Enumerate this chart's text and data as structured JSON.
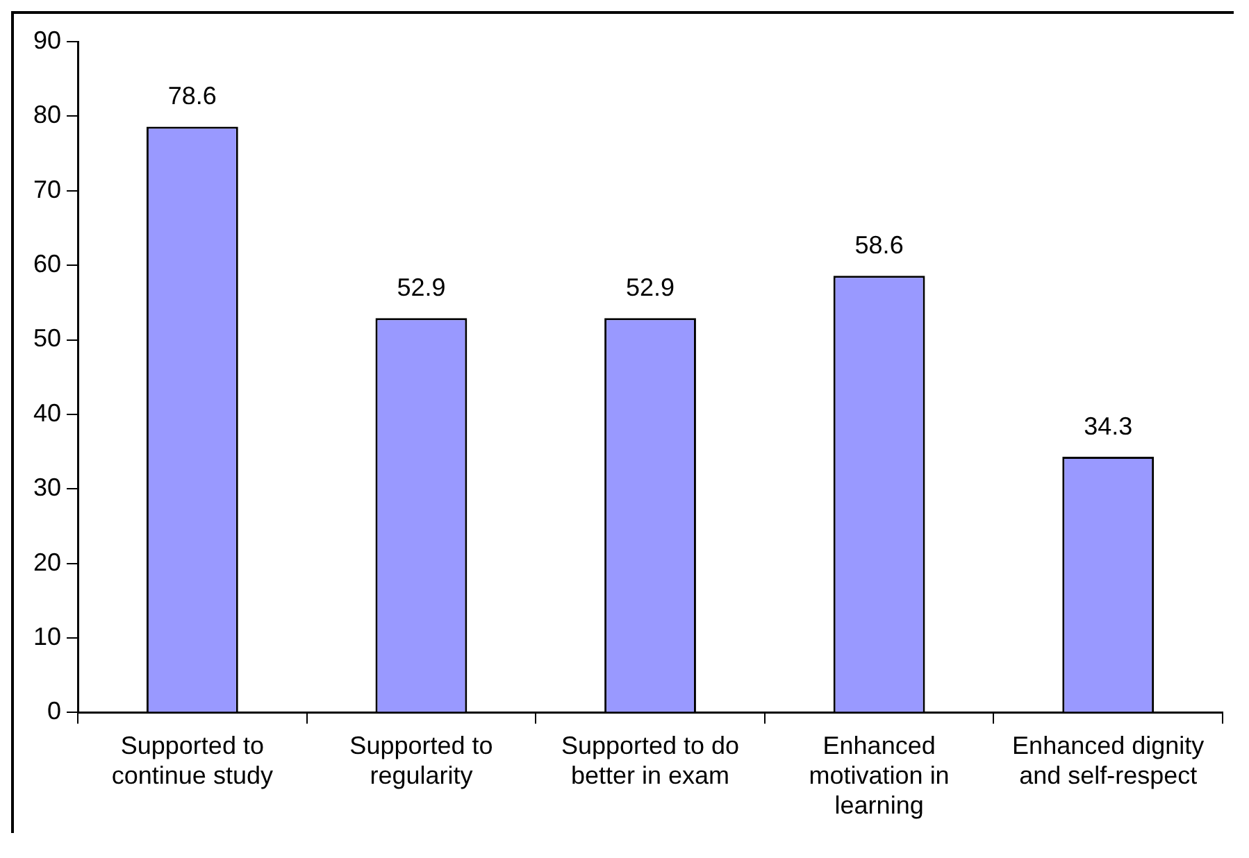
{
  "chart_data": {
    "type": "bar",
    "categories": [
      "Supported to continue study",
      "Supported to regularity",
      "Supported to do better in exam",
      "Enhanced motivation in learning",
      "Enhanced dignity and self-respect"
    ],
    "values": [
      78.6,
      52.9,
      52.9,
      58.6,
      34.3
    ],
    "color": "#9999ff",
    "ylim": [
      0,
      90
    ],
    "yticks": [
      0,
      10,
      20,
      30,
      40,
      50,
      60,
      70,
      80,
      90
    ],
    "data_labels": true,
    "grid": false,
    "legend": false
  }
}
